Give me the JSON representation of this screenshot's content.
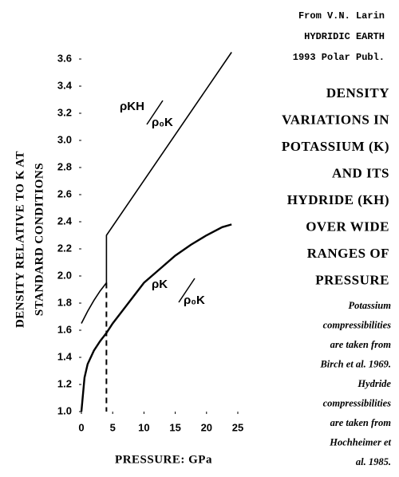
{
  "chart_data": {
    "type": "line",
    "source_lines": [
      "From V.N. Larin",
      "HYDRIDIC EARTH",
      "1993 Polar Publ."
    ],
    "title_lines": [
      "DENSITY",
      "VARIATIONS IN",
      "POTASSIUM (K)",
      "AND ITS",
      "HYDRIDE (KH)",
      "OVER WIDE",
      "RANGES OF",
      "PRESSURE"
    ],
    "note_lines": [
      "Potassium",
      "compressibilities",
      "are taken from",
      "Birch et al. 1969.",
      "Hydride",
      "compressibilities",
      "are taken from",
      "Hochheimer et",
      "al. 1985."
    ],
    "y_label_lines": [
      "DENSITY RELATIVE TO K AT",
      "STANDARD CONDITIONS"
    ],
    "x_label": "PRESSURE:  GPa",
    "xlim": [
      0,
      25
    ],
    "xticks": [
      0,
      5,
      10,
      15,
      20,
      25
    ],
    "ylim": [
      1.0,
      3.6
    ],
    "yticks": [
      {
        "value": 1.0,
        "label": "1.0"
      },
      1.2,
      1.4,
      1.6,
      1.8,
      {
        "value": 2.0,
        "label": "2.0"
      },
      2.2,
      2.4,
      2.6,
      2.8,
      {
        "value": 3.0,
        "label": "3.0"
      },
      3.2,
      3.4,
      3.6
    ],
    "series": [
      {
        "numerator": "ρKH",
        "denominator": "ρ₀K",
        "color": "#000000",
        "x": [
          0,
          1,
          2,
          3,
          4,
          4,
          24
        ],
        "values": [
          1.65,
          1.74,
          1.82,
          1.89,
          1.95,
          2.3,
          3.65
        ]
      },
      {
        "numerator": "ρK",
        "denominator": "ρ₀K",
        "color": "#000000",
        "x": [
          0,
          0.5,
          1,
          2,
          3,
          4,
          5,
          7.5,
          10,
          12.5,
          15,
          17.5,
          20,
          22.5,
          24
        ],
        "values": [
          1.0,
          1.25,
          1.35,
          1.45,
          1.52,
          1.58,
          1.65,
          1.8,
          1.95,
          2.05,
          2.15,
          2.23,
          2.3,
          2.36,
          2.38
        ]
      }
    ]
  }
}
